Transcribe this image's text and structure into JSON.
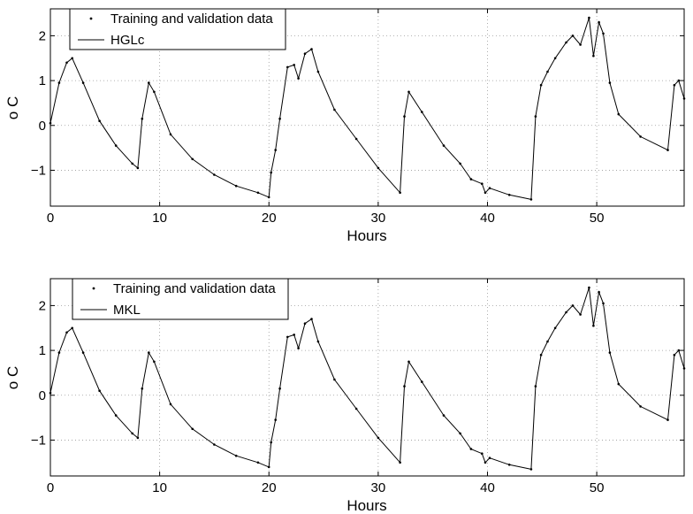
{
  "chart_data": [
    {
      "type": "line",
      "xlabel": "Hours",
      "ylabel": "o C",
      "xlim": [
        0,
        58
      ],
      "ylim": [
        -1.8,
        2.6
      ],
      "xticks": [
        0,
        10,
        20,
        30,
        40,
        50
      ],
      "xtick_labels": [
        "0",
        "10",
        "20",
        "30",
        "40",
        "50"
      ],
      "yticks": [
        2,
        1,
        0,
        -1
      ],
      "ytick_labels": [
        "2",
        "1",
        "0",
        "−1"
      ],
      "grid": true,
      "legend": [
        "Training and validation data",
        "HGLc"
      ],
      "legend_position": "top-left",
      "series": [
        {
          "name": "Training and validation data",
          "style": "dots",
          "x": [
            0,
            0.8,
            1.5,
            2.0,
            3.0,
            4.5,
            6.0,
            7.5,
            8.0,
            8.4,
            9.0,
            9.5,
            11,
            13,
            15,
            17,
            19,
            20.0,
            20.2,
            20.6,
            21.0,
            21.7,
            22.3,
            22.7,
            23.3,
            23.9,
            24.5,
            26,
            28,
            30,
            32.0,
            32.4,
            32.8,
            34,
            36,
            37.5,
            38.5,
            39.5,
            39.8,
            40.2,
            42,
            44.0,
            44.4,
            44.9,
            45.5,
            46.2,
            47.2,
            47.8,
            48.5,
            49.3,
            49.7,
            50.2,
            50.6,
            51.2,
            52,
            54,
            56.5,
            57.1,
            57.5,
            58.0
          ],
          "y": [
            0.05,
            0.95,
            1.4,
            1.5,
            0.95,
            0.1,
            -0.45,
            -0.85,
            -0.95,
            0.15,
            0.95,
            0.75,
            -0.2,
            -0.75,
            -1.1,
            -1.35,
            -1.5,
            -1.6,
            -1.05,
            -0.55,
            0.15,
            1.3,
            1.35,
            1.05,
            1.6,
            1.7,
            1.2,
            0.35,
            -0.3,
            -0.95,
            -1.5,
            0.2,
            0.75,
            0.3,
            -0.45,
            -0.85,
            -1.2,
            -1.3,
            -1.5,
            -1.4,
            -1.55,
            -1.65,
            0.2,
            0.9,
            1.2,
            1.5,
            1.85,
            2.0,
            1.8,
            2.4,
            1.55,
            2.3,
            2.05,
            0.95,
            0.25,
            -0.25,
            -0.55,
            0.9,
            1.0,
            0.6
          ]
        },
        {
          "name": "HGLc",
          "style": "line",
          "x": [
            0,
            0.8,
            1.5,
            2.0,
            3.0,
            4.5,
            6.0,
            7.5,
            8.0,
            8.4,
            9.0,
            9.5,
            11,
            13,
            15,
            17,
            19,
            20.0,
            20.2,
            20.6,
            21.0,
            21.7,
            22.3,
            22.7,
            23.3,
            23.9,
            24.5,
            26,
            28,
            30,
            32.0,
            32.4,
            32.8,
            34,
            36,
            37.5,
            38.5,
            39.5,
            39.8,
            40.2,
            42,
            44.0,
            44.4,
            44.9,
            45.5,
            46.2,
            47.2,
            47.8,
            48.5,
            49.3,
            49.7,
            50.2,
            50.6,
            51.2,
            52,
            54,
            56.5,
            57.1,
            57.5,
            58.0
          ],
          "y": [
            0.05,
            0.95,
            1.4,
            1.5,
            0.95,
            0.1,
            -0.45,
            -0.85,
            -0.95,
            0.15,
            0.95,
            0.75,
            -0.2,
            -0.75,
            -1.1,
            -1.35,
            -1.5,
            -1.6,
            -1.05,
            -0.55,
            0.15,
            1.3,
            1.35,
            1.05,
            1.6,
            1.7,
            1.2,
            0.35,
            -0.3,
            -0.95,
            -1.5,
            0.2,
            0.75,
            0.3,
            -0.45,
            -0.85,
            -1.2,
            -1.3,
            -1.5,
            -1.4,
            -1.55,
            -1.65,
            0.2,
            0.9,
            1.2,
            1.5,
            1.85,
            2.0,
            1.8,
            2.4,
            1.55,
            2.3,
            2.05,
            0.95,
            0.25,
            -0.25,
            -0.55,
            0.9,
            1.0,
            0.6
          ]
        }
      ]
    },
    {
      "type": "line",
      "xlabel": "Hours",
      "ylabel": "o C",
      "xlim": [
        0,
        58
      ],
      "ylim": [
        -1.8,
        2.6
      ],
      "xticks": [
        0,
        10,
        20,
        30,
        40,
        50
      ],
      "xtick_labels": [
        "0",
        "10",
        "20",
        "30",
        "40",
        "50"
      ],
      "yticks": [
        2,
        1,
        0,
        -1
      ],
      "ytick_labels": [
        "2",
        "1",
        "0",
        "−1"
      ],
      "grid": true,
      "legend": [
        "Training and validation data",
        "MKL"
      ],
      "legend_position": "top-left",
      "series": [
        {
          "name": "Training and validation data",
          "style": "dots",
          "x": [
            0,
            0.8,
            1.5,
            2.0,
            3.0,
            4.5,
            6.0,
            7.5,
            8.0,
            8.4,
            9.0,
            9.5,
            11,
            13,
            15,
            17,
            19,
            20.0,
            20.2,
            20.6,
            21.0,
            21.7,
            22.3,
            22.7,
            23.3,
            23.9,
            24.5,
            26,
            28,
            30,
            32.0,
            32.4,
            32.8,
            34,
            36,
            37.5,
            38.5,
            39.5,
            39.8,
            40.2,
            42,
            44.0,
            44.4,
            44.9,
            45.5,
            46.2,
            47.2,
            47.8,
            48.5,
            49.3,
            49.7,
            50.2,
            50.6,
            51.2,
            52,
            54,
            56.5,
            57.1,
            57.5,
            58.0
          ],
          "y": [
            0.05,
            0.95,
            1.4,
            1.5,
            0.95,
            0.1,
            -0.45,
            -0.85,
            -0.95,
            0.15,
            0.95,
            0.75,
            -0.2,
            -0.75,
            -1.1,
            -1.35,
            -1.5,
            -1.6,
            -1.05,
            -0.55,
            0.15,
            1.3,
            1.35,
            1.05,
            1.6,
            1.7,
            1.2,
            0.35,
            -0.3,
            -0.95,
            -1.5,
            0.2,
            0.75,
            0.3,
            -0.45,
            -0.85,
            -1.2,
            -1.3,
            -1.5,
            -1.4,
            -1.55,
            -1.65,
            0.2,
            0.9,
            1.2,
            1.5,
            1.85,
            2.0,
            1.8,
            2.4,
            1.55,
            2.3,
            2.05,
            0.95,
            0.25,
            -0.25,
            -0.55,
            0.9,
            1.0,
            0.6
          ]
        },
        {
          "name": "MKL",
          "style": "line",
          "x": [
            0,
            0.8,
            1.5,
            2.0,
            3.0,
            4.5,
            6.0,
            7.5,
            8.0,
            8.4,
            9.0,
            9.5,
            11,
            13,
            15,
            17,
            19,
            20.0,
            20.2,
            20.6,
            21.0,
            21.7,
            22.3,
            22.7,
            23.3,
            23.9,
            24.5,
            26,
            28,
            30,
            32.0,
            32.4,
            32.8,
            34,
            36,
            37.5,
            38.5,
            39.5,
            39.8,
            40.2,
            42,
            44.0,
            44.4,
            44.9,
            45.5,
            46.2,
            47.2,
            47.8,
            48.5,
            49.3,
            49.7,
            50.2,
            50.6,
            51.2,
            52,
            54,
            56.5,
            57.1,
            57.5,
            58.0
          ],
          "y": [
            0.05,
            0.95,
            1.4,
            1.5,
            0.95,
            0.1,
            -0.45,
            -0.85,
            -0.95,
            0.15,
            0.95,
            0.75,
            -0.2,
            -0.75,
            -1.1,
            -1.35,
            -1.5,
            -1.6,
            -1.05,
            -0.55,
            0.15,
            1.3,
            1.35,
            1.05,
            1.6,
            1.7,
            1.2,
            0.35,
            -0.3,
            -0.95,
            -1.5,
            0.2,
            0.75,
            0.3,
            -0.45,
            -0.85,
            -1.2,
            -1.3,
            -1.5,
            -1.4,
            -1.55,
            -1.65,
            0.2,
            0.9,
            1.2,
            1.5,
            1.85,
            2.0,
            1.8,
            2.4,
            1.55,
            2.3,
            2.05,
            0.95,
            0.25,
            -0.25,
            -0.55,
            0.9,
            1.0,
            0.6
          ]
        }
      ]
    }
  ]
}
